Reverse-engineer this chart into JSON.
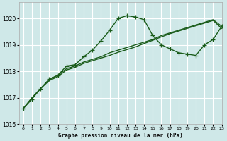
{
  "background_color": "#cfe8e8",
  "grid_color": "#ffffff",
  "line_color": "#1a5c1a",
  "title": "Graphe pression niveau de la mer (hPa)",
  "xlim": [
    -0.5,
    23
  ],
  "ylim": [
    1016.0,
    1020.6
  ],
  "yticks": [
    1016,
    1017,
    1018,
    1019,
    1020
  ],
  "xtick_labels": [
    "0",
    "1",
    "2",
    "3",
    "4",
    "5",
    "6",
    "7",
    "8",
    "9",
    "10",
    "11",
    "12",
    "13",
    "14",
    "15",
    "16",
    "17",
    "18",
    "19",
    "20",
    "21",
    "22",
    "23"
  ],
  "series_main_x": [
    0,
    1,
    2,
    3,
    4,
    5,
    6,
    7,
    8,
    9,
    10,
    11,
    12,
    13,
    14,
    15,
    16,
    17,
    18,
    19,
    20,
    21,
    22,
    23
  ],
  "series_main_y": [
    1016.6,
    1016.95,
    1017.35,
    1017.7,
    1017.85,
    1018.2,
    1018.25,
    1018.55,
    1018.8,
    1019.15,
    1019.55,
    1020.0,
    1020.1,
    1020.05,
    1019.95,
    1019.35,
    1019.0,
    1018.85,
    1018.7,
    1018.65,
    1018.6,
    1019.0,
    1019.2,
    1019.7
  ],
  "series_grad1_x": [
    0,
    1,
    2,
    3,
    4,
    5,
    6,
    7,
    8,
    9,
    10,
    11,
    12,
    13,
    14,
    15,
    16,
    17,
    18,
    19,
    20,
    21,
    22,
    23
  ],
  "series_grad1_y": [
    1016.6,
    1017.0,
    1017.35,
    1017.7,
    1017.85,
    1018.1,
    1018.2,
    1018.35,
    1018.45,
    1018.55,
    1018.7,
    1018.8,
    1018.9,
    1019.0,
    1019.1,
    1019.2,
    1019.35,
    1019.45,
    1019.55,
    1019.65,
    1019.75,
    1019.85,
    1019.95,
    1019.7
  ],
  "series_grad2_x": [
    0,
    1,
    2,
    3,
    4,
    5,
    6,
    7,
    8,
    9,
    10,
    11,
    12,
    13,
    14,
    15,
    16,
    17,
    18,
    19,
    20,
    21,
    22,
    23
  ],
  "series_grad2_y": [
    1016.6,
    1017.0,
    1017.35,
    1017.65,
    1017.8,
    1018.05,
    1018.15,
    1018.3,
    1018.4,
    1018.5,
    1018.6,
    1018.72,
    1018.82,
    1018.92,
    1019.05,
    1019.17,
    1019.3,
    1019.42,
    1019.52,
    1019.62,
    1019.72,
    1019.82,
    1019.92,
    1019.62
  ],
  "marker_size": 4,
  "linewidth": 1.0
}
